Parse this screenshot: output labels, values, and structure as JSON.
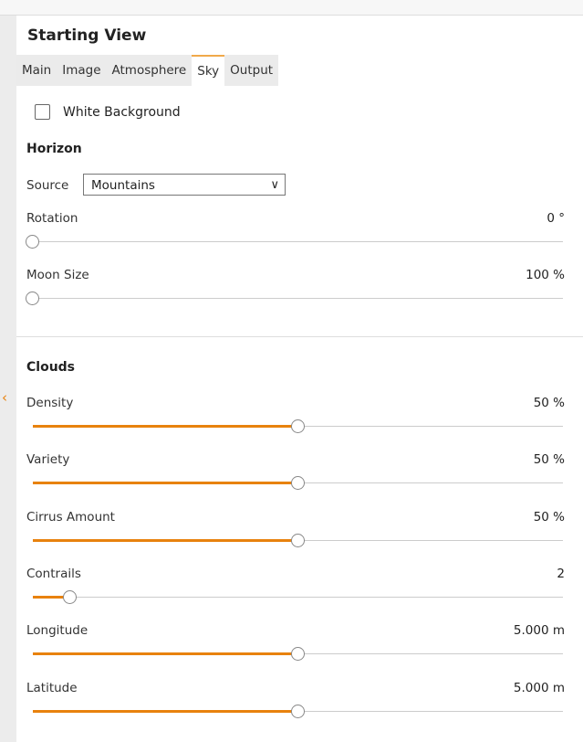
{
  "panel": {
    "title": "Starting View"
  },
  "tabs": [
    {
      "label": "Main"
    },
    {
      "label": "Image"
    },
    {
      "label": "Atmosphere"
    },
    {
      "label": "Sky",
      "active": true
    },
    {
      "label": "Output"
    }
  ],
  "white_background": {
    "label": "White Background",
    "checked": false
  },
  "horizon": {
    "heading": "Horizon",
    "source_label": "Source",
    "source_value": "Mountains",
    "rotation": {
      "label": "Rotation",
      "value": "0 °",
      "fraction": 0
    },
    "moon_size": {
      "label": "Moon Size",
      "value": "100 %",
      "fraction": 0
    }
  },
  "clouds": {
    "heading": "Clouds",
    "sliders": [
      {
        "label": "Density",
        "value": "50 %",
        "fraction": 0.5
      },
      {
        "label": "Variety",
        "value": "50 %",
        "fraction": 0.5
      },
      {
        "label": "Cirrus Amount",
        "value": "50 %",
        "fraction": 0.5
      },
      {
        "label": "Contrails",
        "value": "2",
        "fraction": 0.07
      },
      {
        "label": "Longitude",
        "value": "5.000 m",
        "fraction": 0.5
      },
      {
        "label": "Latitude",
        "value": "5.000 m",
        "fraction": 0.5
      }
    ]
  },
  "colors": {
    "accent": "#e8820e"
  }
}
